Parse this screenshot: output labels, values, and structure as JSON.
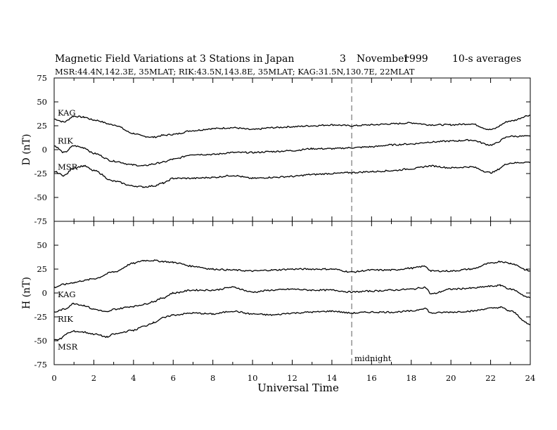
{
  "header": {
    "title": "Magnetic Field Variations at 3 Stations in Japan",
    "day": "3",
    "month": "November",
    "year": "1999",
    "averaging": "10-s averages",
    "stations_line": "MSR:44.4N,142.3E, 35MLAT;  RIK:43.5N,143.8E, 35MLAT;  KAG:31.5N,130.7E, 22MLAT"
  },
  "chart_data": [
    {
      "type": "line",
      "panel": "D",
      "ylabel": "D (nT)",
      "xlabel": "",
      "xlim": [
        0,
        24
      ],
      "ylim": [
        -75,
        75
      ],
      "yticks": [
        -75,
        -50,
        -25,
        0,
        25,
        50,
        75
      ],
      "xticks": [
        0,
        2,
        4,
        6,
        8,
        10,
        12,
        14,
        16,
        18,
        20,
        22,
        24
      ],
      "annotation": {
        "x": 15,
        "style": "dashed"
      },
      "series": [
        {
          "name": "KAG",
          "x": [
            0,
            0.5,
            1,
            1.5,
            2,
            3,
            4,
            4.5,
            5,
            5.5,
            6,
            7,
            8,
            9,
            10,
            11,
            12,
            13,
            14,
            15,
            16,
            17,
            18,
            19,
            20,
            21,
            22,
            23,
            24
          ],
          "y": [
            32,
            29,
            35,
            34,
            31,
            26,
            17,
            14,
            13,
            15,
            16,
            20,
            22,
            23,
            21,
            23,
            24,
            25,
            26,
            25,
            26,
            27,
            28,
            26,
            26,
            27,
            21,
            30,
            36
          ]
        },
        {
          "name": "RIK",
          "x": [
            0,
            0.5,
            1,
            1.5,
            2,
            3,
            4,
            4.5,
            5,
            5.5,
            6,
            7,
            8,
            9,
            10,
            11,
            12,
            13,
            14,
            15,
            16,
            17,
            18,
            19,
            20,
            21,
            22,
            23,
            24
          ],
          "y": [
            4,
            -3,
            4,
            2,
            -4,
            -12,
            -16,
            -17,
            -15,
            -13,
            -10,
            -5,
            -5,
            -3,
            -3,
            -2,
            -1,
            1,
            1,
            2,
            3,
            5,
            6,
            8,
            9,
            10,
            5,
            14,
            14
          ]
        },
        {
          "name": "MSR",
          "x": [
            0,
            0.5,
            1,
            1.5,
            2,
            3,
            4,
            4.5,
            5,
            5.5,
            6,
            7,
            8,
            9,
            10,
            11,
            12,
            13,
            14,
            15,
            16,
            17,
            18,
            19,
            20,
            21,
            22,
            23,
            24
          ],
          "y": [
            -23,
            -27,
            -19,
            -17,
            -22,
            -33,
            -38,
            -39,
            -38,
            -35,
            -30,
            -30,
            -29,
            -27,
            -30,
            -29,
            -28,
            -26,
            -25,
            -24,
            -23,
            -22,
            -20,
            -17,
            -19,
            -18,
            -24,
            -14,
            -13
          ]
        }
      ]
    },
    {
      "type": "line",
      "panel": "H",
      "ylabel": "H (nT)",
      "xlabel": "Universal Time",
      "xlim": [
        0,
        24
      ],
      "ylim": [
        -75,
        75
      ],
      "yticks": [
        -75,
        -50,
        -25,
        0,
        25,
        50,
        75
      ],
      "xticks": [
        0,
        2,
        4,
        6,
        8,
        10,
        12,
        14,
        16,
        18,
        20,
        22,
        24
      ],
      "annotation": {
        "x": 15,
        "style": "dashed",
        "label": "midnight"
      },
      "series": [
        {
          "name": "KAG",
          "x": [
            0,
            0.5,
            1,
            1.5,
            2,
            3,
            4,
            4.5,
            5,
            5.5,
            6,
            7,
            8,
            9,
            10,
            11,
            12,
            13,
            14,
            15,
            16,
            17,
            18,
            18.7,
            19,
            20,
            21,
            22,
            22.5,
            23,
            24
          ],
          "y": [
            6,
            9,
            11,
            13,
            15,
            22,
            31,
            34,
            34,
            33,
            32,
            28,
            25,
            24,
            23,
            24,
            25,
            25,
            25,
            22,
            24,
            24,
            26,
            28,
            23,
            23,
            25,
            31,
            33,
            31,
            23
          ]
        },
        {
          "name": "RIK",
          "x": [
            0,
            0.5,
            1,
            1.5,
            2,
            2.7,
            3,
            4,
            4.5,
            5,
            5.5,
            6,
            7,
            8,
            9,
            10,
            11,
            12,
            13,
            14,
            15,
            16,
            17,
            18,
            18.7,
            19,
            20,
            21,
            22,
            22.5,
            23,
            24
          ],
          "y": [
            -20,
            -17,
            -11,
            -13,
            -17,
            -20,
            -17,
            -14,
            -12,
            -9,
            -5,
            0,
            3,
            3,
            6,
            1,
            3,
            4,
            3,
            3,
            1,
            2,
            3,
            4,
            6,
            -1,
            4,
            5,
            7,
            8,
            4,
            -5
          ]
        },
        {
          "name": "MSR",
          "x": [
            0,
            0.3,
            0.7,
            1,
            1.5,
            2,
            2.7,
            3,
            4,
            4.5,
            5,
            5.5,
            6,
            7,
            8,
            9,
            10,
            11,
            12,
            13,
            14,
            15,
            16,
            17,
            18,
            18.7,
            19,
            20,
            21,
            22,
            22.5,
            23,
            24
          ],
          "y": [
            -49,
            -48,
            -42,
            -40,
            -41,
            -43,
            -46,
            -43,
            -39,
            -35,
            -31,
            -26,
            -23,
            -21,
            -22,
            -19,
            -22,
            -23,
            -21,
            -20,
            -19,
            -21,
            -20,
            -20,
            -19,
            -16,
            -21,
            -20,
            -19,
            -16,
            -15,
            -19,
            -33
          ]
        }
      ]
    }
  ]
}
